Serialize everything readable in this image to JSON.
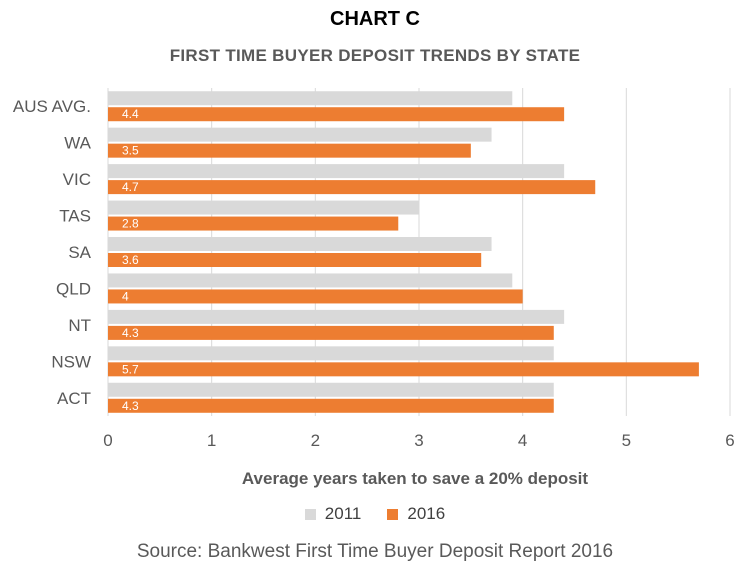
{
  "header": {
    "chart_label": "CHART C",
    "title": "FIRST TIME BUYER DEPOSIT TRENDS BY STATE"
  },
  "chart_data": {
    "type": "bar",
    "orientation": "horizontal",
    "categories": [
      "AUS AVG.",
      "WA",
      "VIC",
      "TAS",
      "SA",
      "QLD",
      "NT",
      "NSW",
      "ACT"
    ],
    "series": [
      {
        "name": "2011",
        "color": "#d9d9d9",
        "values": [
          3.9,
          3.7,
          4.4,
          3.0,
          3.7,
          3.9,
          4.4,
          4.3,
          4.3
        ]
      },
      {
        "name": "2016",
        "color": "#ed7d31",
        "values": [
          4.4,
          3.5,
          4.7,
          2.8,
          3.6,
          4.0,
          4.3,
          5.7,
          4.3
        ],
        "data_labels": [
          "4.4",
          "3.5",
          "4.7",
          "2.8",
          "3.6",
          "4",
          "4.3",
          "5.7",
          "4.3"
        ]
      }
    ],
    "xlabel": "Average years taken to save a 20% deposit",
    "xlim": [
      0,
      6
    ],
    "xticks": [
      "0",
      "1",
      "2",
      "3",
      "4",
      "5",
      "6"
    ],
    "grid": "vertical",
    "legend_position": "bottom"
  },
  "footer": {
    "source": "Source: Bankwest First Time Buyer Deposit Report 2016"
  }
}
